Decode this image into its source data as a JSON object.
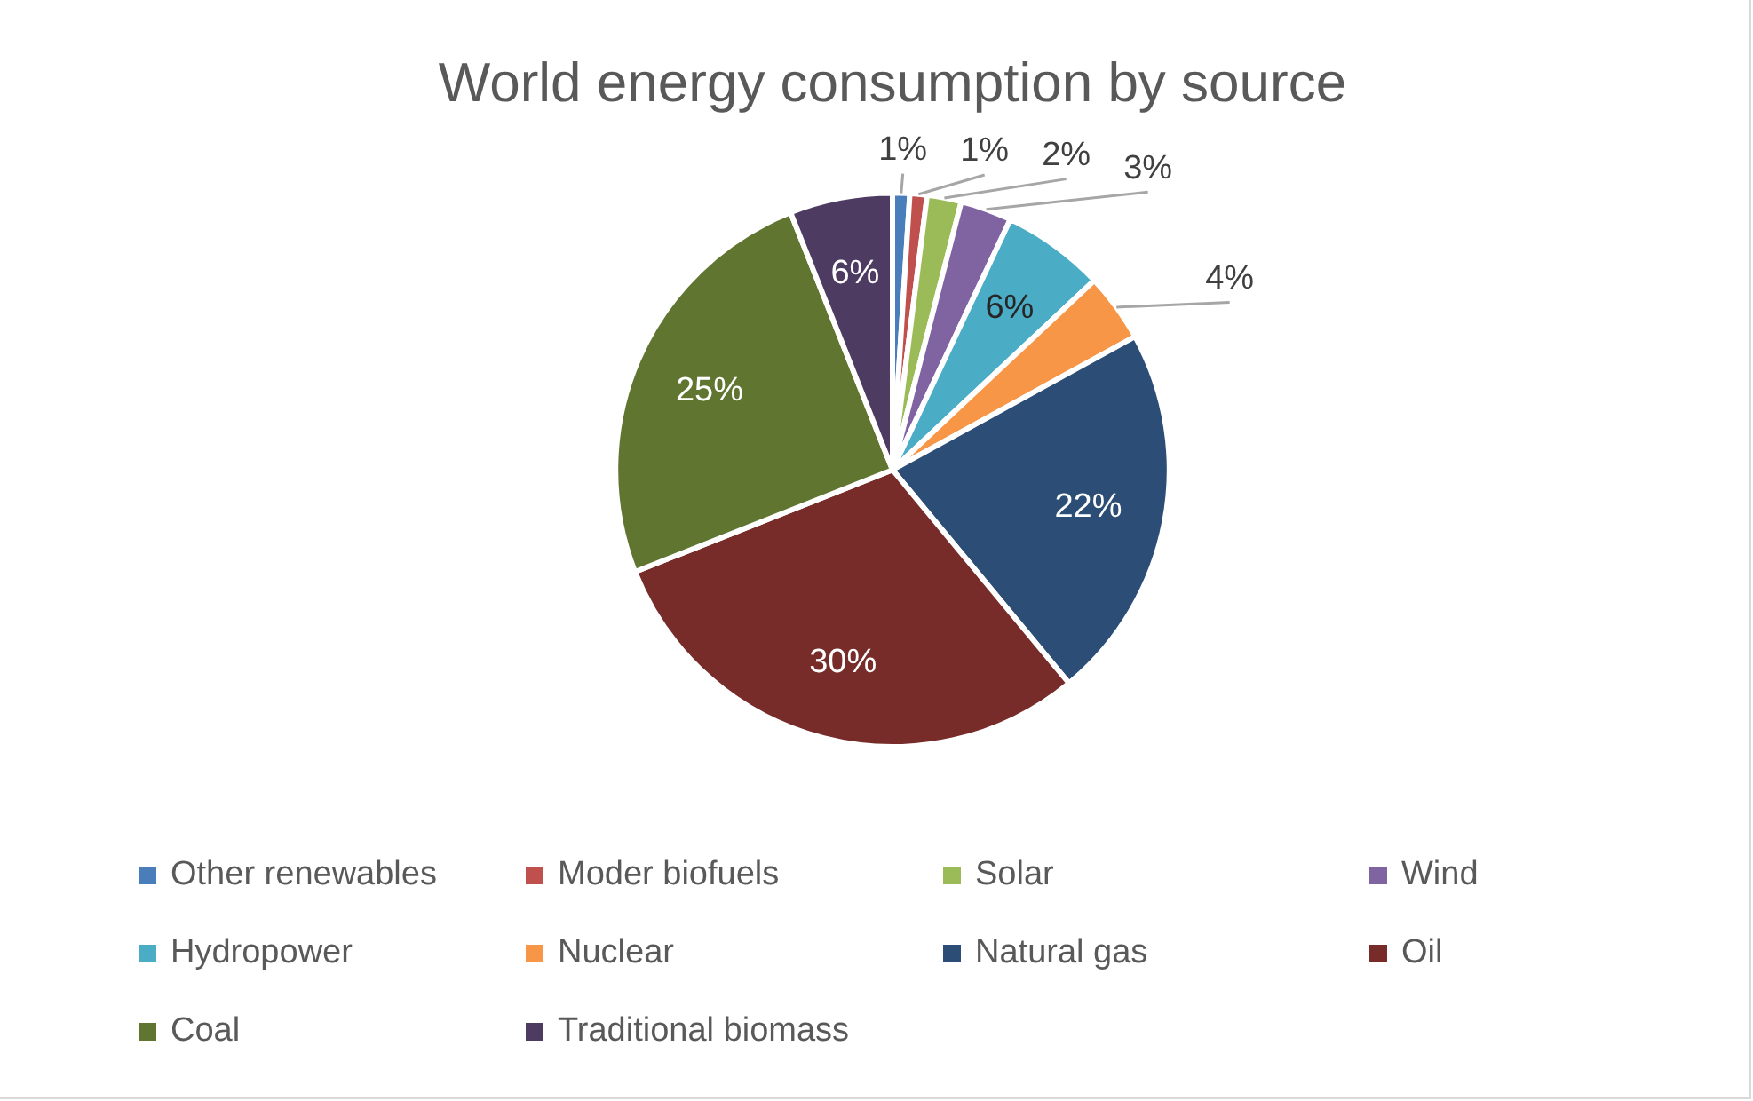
{
  "chart_data": {
    "type": "pie",
    "title": "World energy consumption by source",
    "categories": [
      "Other renewables",
      "Moder biofuels",
      "Solar",
      "Wind",
      "Hydropower",
      "Nuclear",
      "Natural gas",
      "Oil",
      "Coal",
      "Traditional biomass"
    ],
    "values": [
      1,
      1,
      2,
      3,
      6,
      4,
      22,
      30,
      25,
      6
    ],
    "colors": [
      "#4a7ebb",
      "#c0504d",
      "#9bbb59",
      "#8064a2",
      "#4bacc6",
      "#f79646",
      "#2c4d75",
      "#772c2a",
      "#5f7530",
      "#4d3b62"
    ],
    "value_labels": [
      "1%",
      "1%",
      "2%",
      "3%",
      "6%",
      "4%",
      "22%",
      "30%",
      "25%",
      "6%"
    ],
    "legend": "bottom"
  }
}
